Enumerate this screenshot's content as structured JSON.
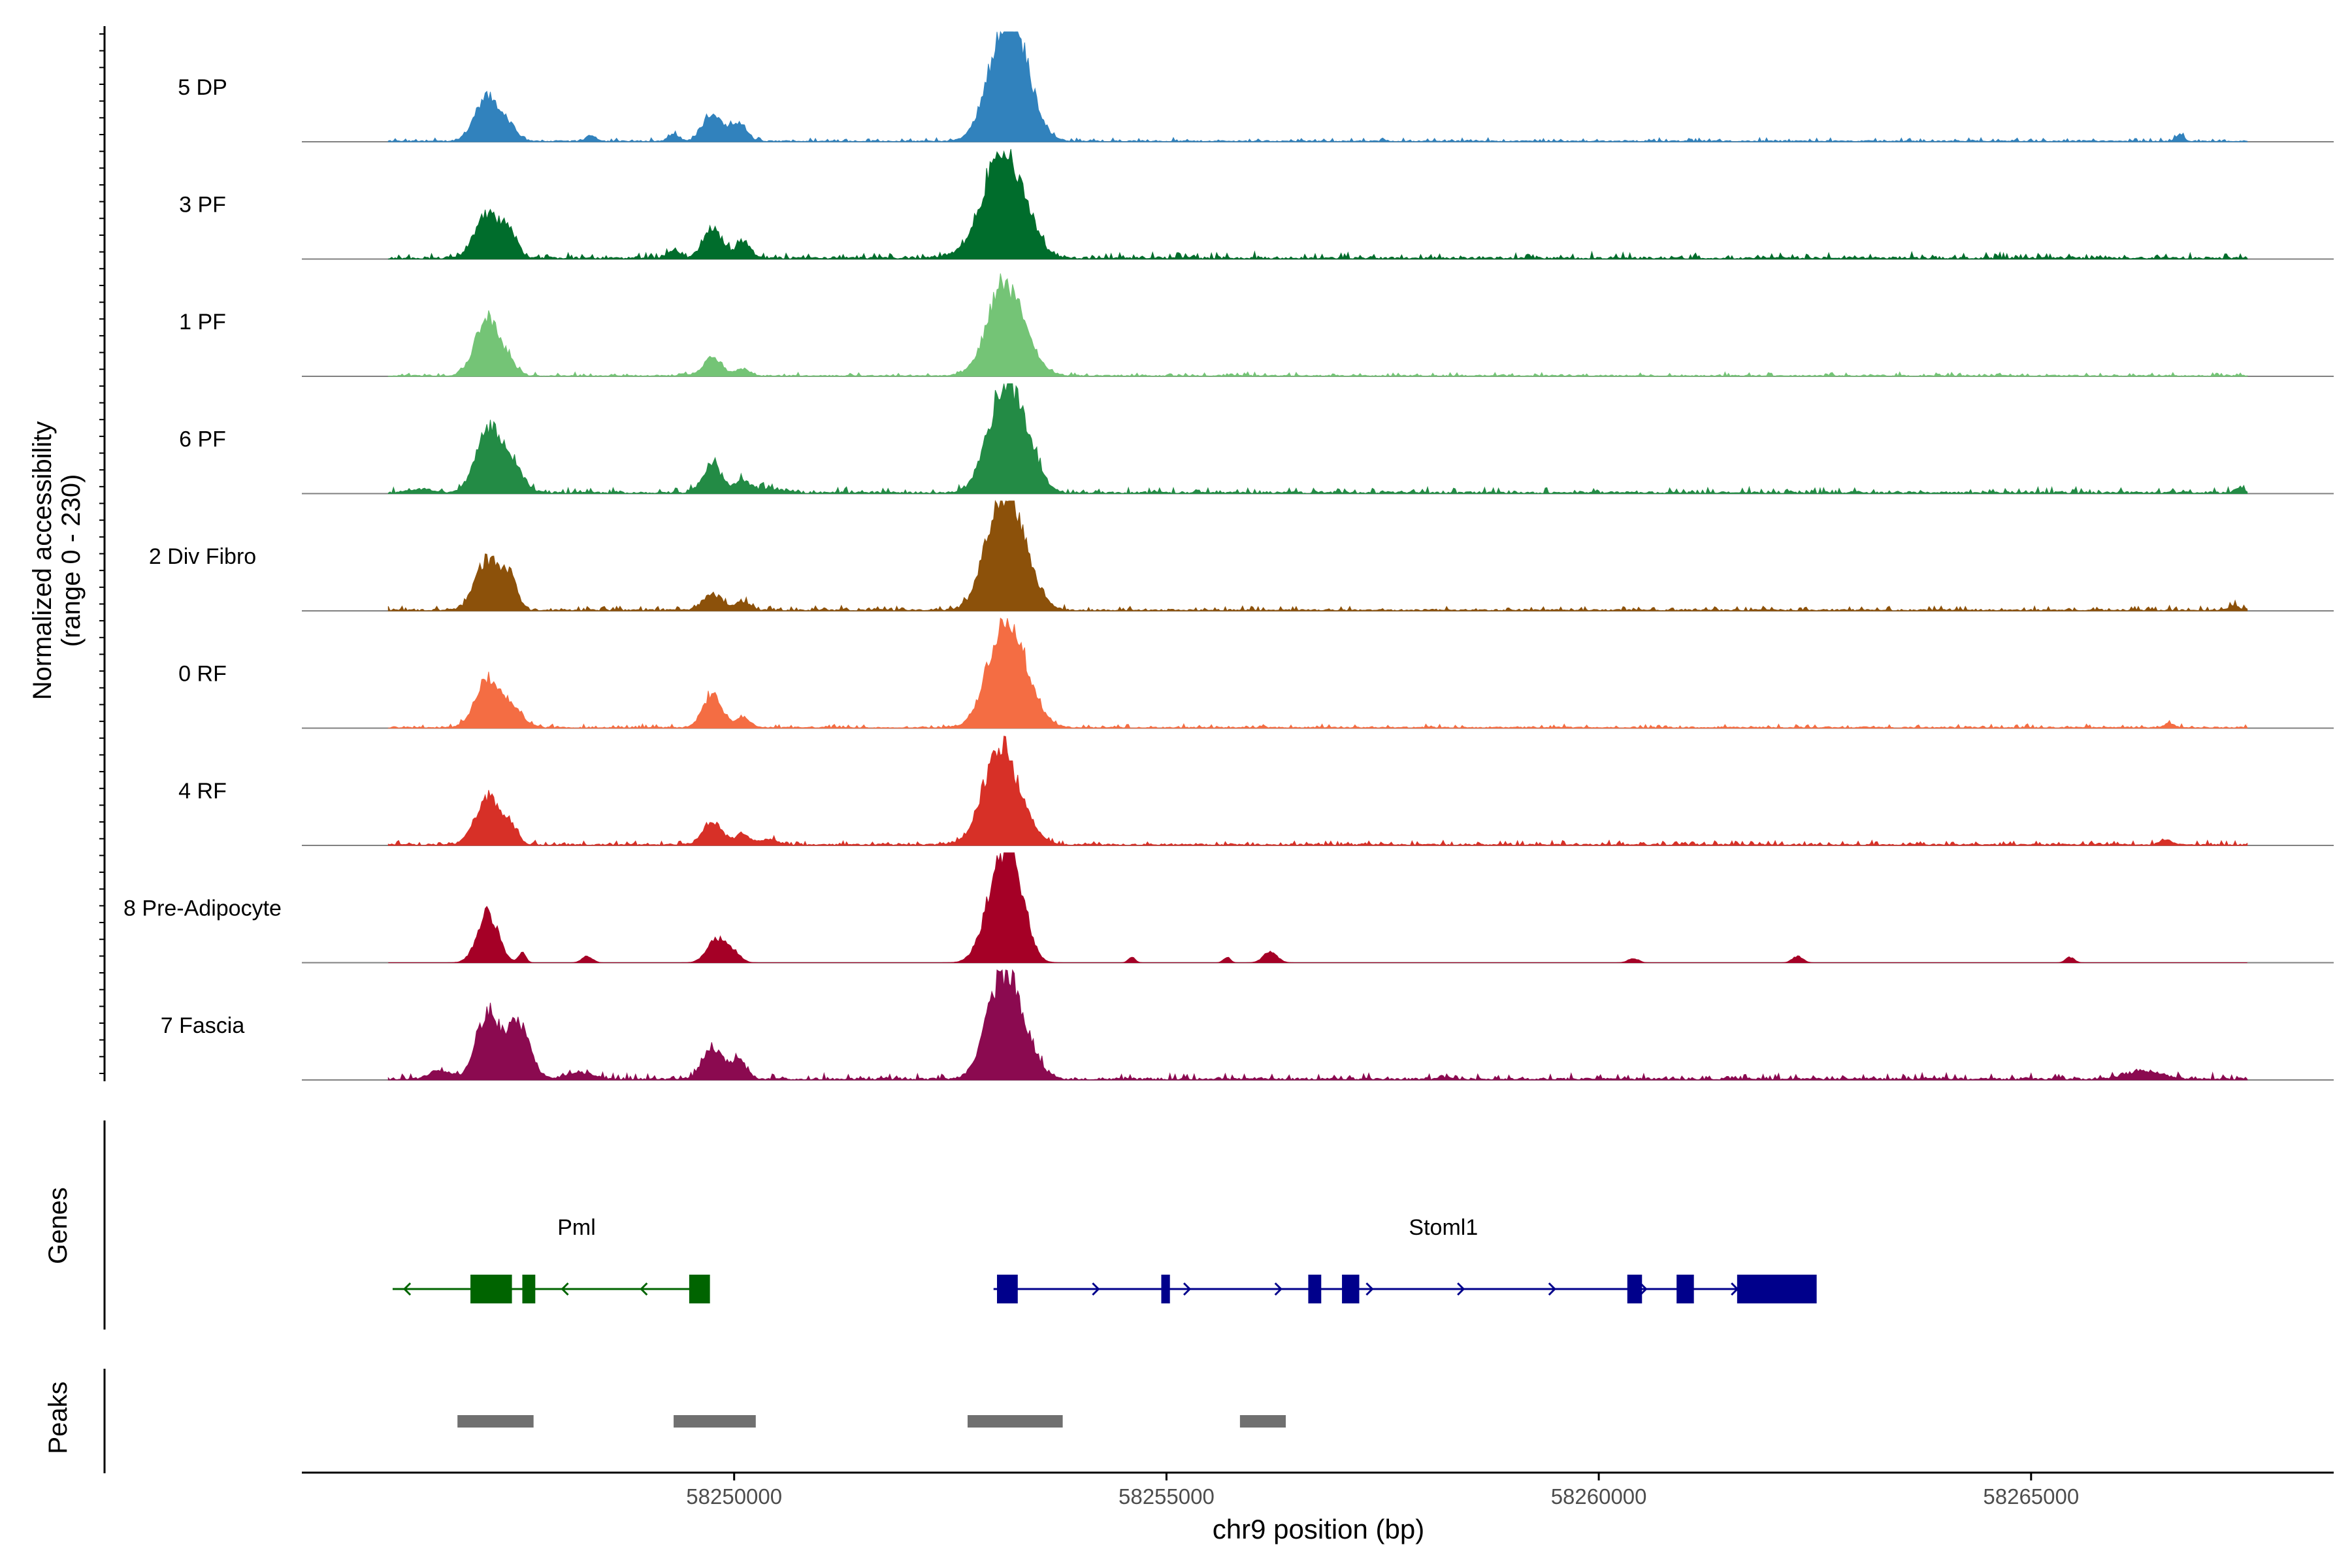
{
  "chart_data": {
    "type": "area",
    "title": "",
    "ylabel": "Normalized accessibility",
    "ylabel_range": "(range 0 - 230)",
    "y_range": [
      0,
      230
    ],
    "xlabel": "chr9 position (bp)",
    "x_range": [
      58245000,
      58268500
    ],
    "x_ticks": [
      58250000,
      58255000,
      58260000,
      58265000
    ],
    "x_tick_labels": [
      "58250000",
      "58255000",
      "58260000",
      "58265000"
    ],
    "coverage_extent": [
      58246000,
      58267500
    ],
    "series": [
      {
        "name": "5 DP",
        "color": "#3182bd",
        "peaks": [
          [
            58247150,
            0.41,
            140
          ],
          [
            58247400,
            0.1,
            90
          ],
          [
            58249750,
            0.25,
            110
          ],
          [
            58250050,
            0.16,
            90
          ],
          [
            58253120,
            1.0,
            190
          ],
          [
            58253350,
            0.36,
            170
          ],
          [
            58248350,
            0.05,
            60
          ],
          [
            58249300,
            0.07,
            60
          ],
          [
            58266720,
            0.06,
            45
          ]
        ],
        "noise": 0.012
      },
      {
        "name": "3 PF",
        "color": "#006d2c",
        "peaks": [
          [
            58247150,
            0.4,
            140
          ],
          [
            58247400,
            0.22,
            90
          ],
          [
            58249750,
            0.28,
            110
          ],
          [
            58250100,
            0.16,
            80
          ],
          [
            58253070,
            0.93,
            190
          ],
          [
            58253350,
            0.3,
            170
          ],
          [
            58249300,
            0.08,
            60
          ],
          [
            58252700,
            0.06,
            200
          ]
        ],
        "noise": 0.02
      },
      {
        "name": "1 PF",
        "color": "#74c476",
        "peaks": [
          [
            58247150,
            0.55,
            140
          ],
          [
            58247400,
            0.08,
            90
          ],
          [
            58249750,
            0.16,
            110
          ],
          [
            58250100,
            0.06,
            80
          ],
          [
            58253120,
            0.83,
            190
          ],
          [
            58253400,
            0.11,
            170
          ]
        ],
        "noise": 0.012
      },
      {
        "name": "6 PF",
        "color": "#238b45",
        "peaks": [
          [
            58247150,
            0.55,
            140
          ],
          [
            58247400,
            0.28,
            140
          ],
          [
            58249750,
            0.26,
            110
          ],
          [
            58250100,
            0.11,
            80
          ],
          [
            58253120,
            0.92,
            190
          ],
          [
            58253380,
            0.28,
            150
          ],
          [
            58246400,
            0.03,
            150
          ],
          [
            58250400,
            0.04,
            150
          ],
          [
            58267400,
            0.05,
            50
          ]
        ],
        "noise": 0.02
      },
      {
        "name": "2 Div Fibro",
        "color": "#8c510a",
        "peaks": [
          [
            58247150,
            0.46,
            140
          ],
          [
            58247400,
            0.27,
            90
          ],
          [
            58249750,
            0.15,
            110
          ],
          [
            58250100,
            0.08,
            80
          ],
          [
            58253100,
            1.0,
            190
          ],
          [
            58253350,
            0.28,
            170
          ],
          [
            58267350,
            0.05,
            50
          ]
        ],
        "noise": 0.015
      },
      {
        "name": "0 RF",
        "color": "#f46d43",
        "peaks": [
          [
            58247150,
            0.45,
            140
          ],
          [
            58247450,
            0.15,
            120
          ],
          [
            58249750,
            0.3,
            110
          ],
          [
            58250100,
            0.1,
            80
          ],
          [
            58253120,
            0.96,
            190
          ],
          [
            58253400,
            0.2,
            170
          ],
          [
            58266600,
            0.04,
            60
          ]
        ],
        "noise": 0.012
      },
      {
        "name": "4 RF",
        "color": "#d73027",
        "peaks": [
          [
            58247150,
            0.44,
            140
          ],
          [
            58247400,
            0.16,
            90
          ],
          [
            58249750,
            0.22,
            110
          ],
          [
            58250100,
            0.1,
            80
          ],
          [
            58250400,
            0.05,
            100
          ],
          [
            58253070,
            0.88,
            190
          ],
          [
            58253350,
            0.12,
            170
          ],
          [
            58266550,
            0.05,
            60
          ]
        ],
        "noise": 0.015
      },
      {
        "name": "8 Pre-Adipocyte",
        "color": "#a50026",
        "peaks": [
          [
            58247150,
            0.46,
            120
          ],
          [
            58247550,
            0.1,
            40
          ],
          [
            58249800,
            0.22,
            110
          ],
          [
            58250000,
            0.08,
            80
          ],
          [
            58253100,
            0.98,
            170
          ],
          [
            58253300,
            0.3,
            120
          ],
          [
            58256200,
            0.1,
            80
          ],
          [
            58248300,
            0.06,
            60
          ],
          [
            58262300,
            0.06,
            60
          ],
          [
            58265450,
            0.05,
            50
          ],
          [
            58254600,
            0.05,
            40
          ],
          [
            58255700,
            0.05,
            40
          ],
          [
            58260400,
            0.04,
            60
          ]
        ],
        "noise": 0.0
      },
      {
        "name": "7 Fascia",
        "color": "#8b0a50",
        "peaks": [
          [
            58247150,
            0.62,
            130
          ],
          [
            58247500,
            0.52,
            130
          ],
          [
            58249750,
            0.3,
            110
          ],
          [
            58250050,
            0.18,
            90
          ],
          [
            58253100,
            0.9,
            180
          ],
          [
            58253350,
            0.25,
            160
          ],
          [
            58246600,
            0.08,
            120
          ],
          [
            58248200,
            0.06,
            150
          ],
          [
            58266300,
            0.08,
            200
          ]
        ],
        "noise": 0.02
      }
    ],
    "genes": [
      {
        "name": "Pml",
        "color": "#006400",
        "strand": "-",
        "start": 58246050,
        "end": 58249700,
        "exons": [
          [
            58246950,
            58247430
          ],
          [
            58247550,
            58247700
          ],
          [
            58249480,
            58249720
          ]
        ]
      },
      {
        "name": "Stoml1",
        "color": "#00008b",
        "strand": "+",
        "start": 58253000,
        "end": 58262500,
        "exons": [
          [
            58253040,
            58253280
          ],
          [
            58254940,
            58255040
          ],
          [
            58256640,
            58256790
          ],
          [
            58257030,
            58257230
          ],
          [
            58260330,
            58260500
          ],
          [
            58260900,
            58261100
          ],
          [
            58261600,
            58262520
          ]
        ]
      }
    ],
    "peaks_track": [
      [
        58246800,
        58247680
      ],
      [
        58249300,
        58250250
      ],
      [
        58252700,
        58253800
      ],
      [
        58255850,
        58256380
      ]
    ],
    "track_labels": {
      "genes": "Genes",
      "peaks": "Peaks"
    }
  }
}
